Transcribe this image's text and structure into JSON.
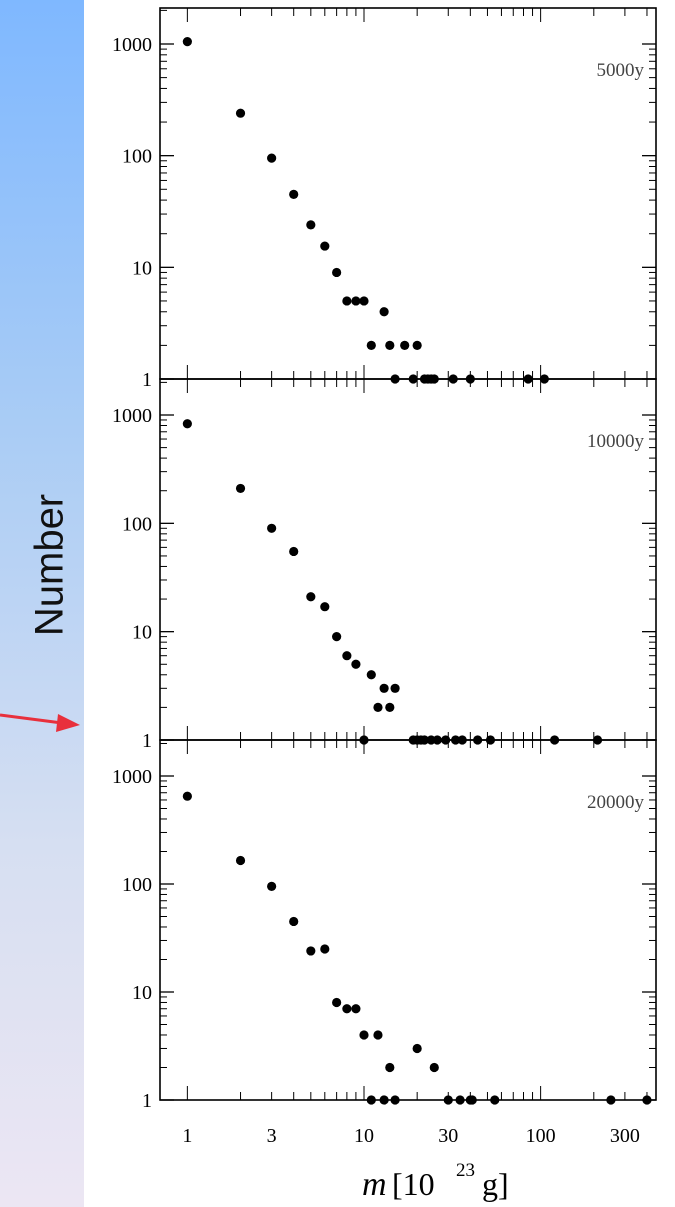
{
  "ylabel": "Number",
  "colors": {
    "arrow": "#e8303c",
    "points": "#000000",
    "background_top": "#7fb8ff",
    "background_bottom": "#ece6f3"
  },
  "chart_data": [
    {
      "type": "scatter",
      "label": "5000y",
      "xscale": "log",
      "yscale": "log",
      "xlim": [
        0.7,
        450
      ],
      "ylim": [
        1,
        1000
      ],
      "yticks": [
        "1000",
        "100",
        "10",
        "1"
      ],
      "points": [
        {
          "x": 1,
          "y": 1050
        },
        {
          "x": 2,
          "y": 240
        },
        {
          "x": 3,
          "y": 95
        },
        {
          "x": 4,
          "y": 45
        },
        {
          "x": 5,
          "y": 24
        },
        {
          "x": 6,
          "y": 15.5
        },
        {
          "x": 7,
          "y": 9
        },
        {
          "x": 8,
          "y": 5
        },
        {
          "x": 9,
          "y": 5
        },
        {
          "x": 10,
          "y": 5
        },
        {
          "x": 11,
          "y": 2
        },
        {
          "x": 13,
          "y": 4
        },
        {
          "x": 14,
          "y": 2
        },
        {
          "x": 15,
          "y": 1
        },
        {
          "x": 17,
          "y": 2
        },
        {
          "x": 19,
          "y": 1
        },
        {
          "x": 20,
          "y": 2
        },
        {
          "x": 22,
          "y": 1
        },
        {
          "x": 23,
          "y": 1
        },
        {
          "x": 24,
          "y": 1
        },
        {
          "x": 25,
          "y": 1
        },
        {
          "x": 32,
          "y": 1
        },
        {
          "x": 40,
          "y": 1
        },
        {
          "x": 85,
          "y": 1
        },
        {
          "x": 105,
          "y": 1
        }
      ]
    },
    {
      "type": "scatter",
      "label": "10000y",
      "xscale": "log",
      "yscale": "log",
      "xlim": [
        0.7,
        450
      ],
      "ylim": [
        1,
        1000
      ],
      "yticks": [
        "1000",
        "100",
        "10",
        "1"
      ],
      "points": [
        {
          "x": 1,
          "y": 830
        },
        {
          "x": 2,
          "y": 210
        },
        {
          "x": 3,
          "y": 90
        },
        {
          "x": 4,
          "y": 55
        },
        {
          "x": 5,
          "y": 21
        },
        {
          "x": 6,
          "y": 17
        },
        {
          "x": 7,
          "y": 9
        },
        {
          "x": 8,
          "y": 6
        },
        {
          "x": 9,
          "y": 5
        },
        {
          "x": 10,
          "y": 1
        },
        {
          "x": 11,
          "y": 4
        },
        {
          "x": 12,
          "y": 2
        },
        {
          "x": 13,
          "y": 3
        },
        {
          "x": 14,
          "y": 2
        },
        {
          "x": 15,
          "y": 3
        },
        {
          "x": 19,
          "y": 1
        },
        {
          "x": 20,
          "y": 1
        },
        {
          "x": 21,
          "y": 1
        },
        {
          "x": 22,
          "y": 1
        },
        {
          "x": 24,
          "y": 1
        },
        {
          "x": 26,
          "y": 1
        },
        {
          "x": 29,
          "y": 1
        },
        {
          "x": 33,
          "y": 1
        },
        {
          "x": 36,
          "y": 1
        },
        {
          "x": 44,
          "y": 1
        },
        {
          "x": 52,
          "y": 1
        },
        {
          "x": 120,
          "y": 1
        },
        {
          "x": 210,
          "y": 1
        }
      ]
    },
    {
      "type": "scatter",
      "label": "20000y",
      "xscale": "log",
      "yscale": "log",
      "xlim": [
        0.7,
        450
      ],
      "ylim": [
        1,
        1000
      ],
      "yticks": [
        "1000",
        "100",
        "10",
        "1"
      ],
      "xticks": [
        "1",
        "3",
        "10",
        "30",
        "100",
        "300"
      ],
      "xlabel_main": "m",
      "xlabel_unit": "[10",
      "xlabel_exp": "23",
      "xlabel_tail": "g]",
      "points": [
        {
          "x": 1,
          "y": 650
        },
        {
          "x": 2,
          "y": 165
        },
        {
          "x": 3,
          "y": 95
        },
        {
          "x": 4,
          "y": 45
        },
        {
          "x": 5,
          "y": 24
        },
        {
          "x": 6,
          "y": 25
        },
        {
          "x": 7,
          "y": 8
        },
        {
          "x": 8,
          "y": 7
        },
        {
          "x": 9,
          "y": 7
        },
        {
          "x": 10,
          "y": 4
        },
        {
          "x": 11,
          "y": 1
        },
        {
          "x": 12,
          "y": 4
        },
        {
          "x": 13,
          "y": 1
        },
        {
          "x": 14,
          "y": 2
        },
        {
          "x": 15,
          "y": 1
        },
        {
          "x": 20,
          "y": 3
        },
        {
          "x": 25,
          "y": 2
        },
        {
          "x": 30,
          "y": 1
        },
        {
          "x": 35,
          "y": 1
        },
        {
          "x": 40,
          "y": 1
        },
        {
          "x": 41,
          "y": 1
        },
        {
          "x": 55,
          "y": 1
        },
        {
          "x": 250,
          "y": 1
        },
        {
          "x": 400,
          "y": 1
        }
      ]
    }
  ]
}
